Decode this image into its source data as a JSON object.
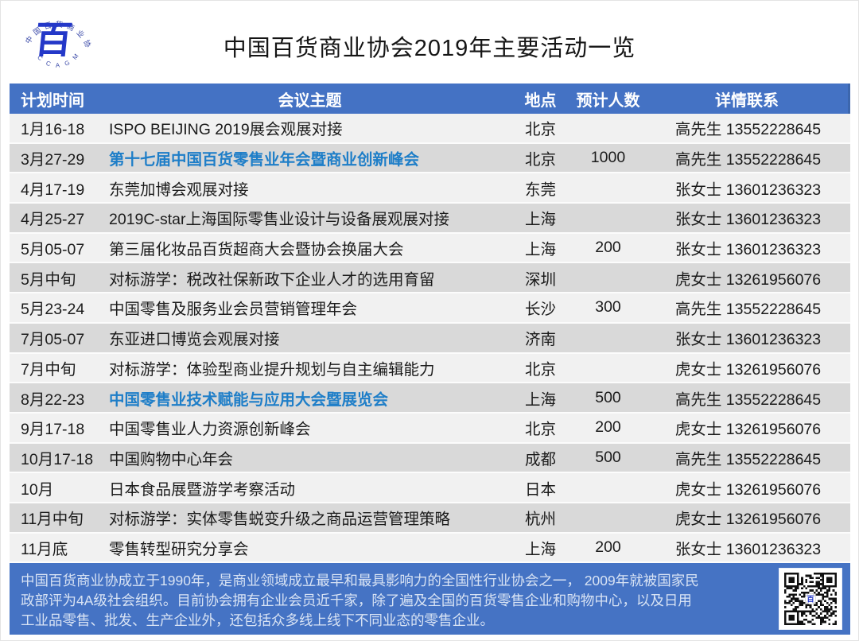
{
  "page": {
    "title": "中国百货商业协会2019年主要活动一览",
    "logo": {
      "ring_top_text": "中国百货商业协会",
      "ring_bottom_text": "C C A G M",
      "center_glyph": "百"
    }
  },
  "table": {
    "headers": [
      "计划时间",
      "会议主题",
      "地点",
      "预计人数",
      "详情联系"
    ],
    "rows": [
      {
        "time": "1月16-18",
        "topic": "ISPO BEIJING 2019展会观展对接",
        "location": "北京",
        "attendees": "",
        "contact_name": "高先生",
        "contact_phone": "13552228645",
        "highlight": false
      },
      {
        "time": "3月27-29",
        "topic": "第十七届中国百货零售业年会暨商业创新峰会",
        "location": "北京",
        "attendees": "1000",
        "contact_name": "高先生",
        "contact_phone": "13552228645",
        "highlight": true
      },
      {
        "time": "4月17-19",
        "topic": "东莞加博会观展对接",
        "location": "东莞",
        "attendees": "",
        "contact_name": "张女士",
        "contact_phone": "13601236323",
        "highlight": false
      },
      {
        "time": "4月25-27",
        "topic": "2019C-star上海国际零售业设计与设备展观展对接",
        "location": "上海",
        "attendees": "",
        "contact_name": "张女士",
        "contact_phone": "13601236323",
        "highlight": false
      },
      {
        "time": "5月05-07",
        "topic": "第三届化妆品百货超商大会暨协会换届大会",
        "location": "上海",
        "attendees": "200",
        "contact_name": "张女士",
        "contact_phone": "13601236323",
        "highlight": false
      },
      {
        "time": "5月中旬",
        "topic": "对标游学：税改社保新政下企业人才的选用育留",
        "location": "深圳",
        "attendees": "",
        "contact_name": "虎女士",
        "contact_phone": "13261956076",
        "highlight": false
      },
      {
        "time": "5月23-24",
        "topic": "中国零售及服务业会员营销管理年会",
        "location": "长沙",
        "attendees": "300",
        "contact_name": "高先生",
        "contact_phone": "13552228645",
        "highlight": false
      },
      {
        "time": "7月05-07",
        "topic": "东亚进口博览会观展对接",
        "location": "济南",
        "attendees": "",
        "contact_name": "张女士",
        "contact_phone": "13601236323",
        "highlight": false
      },
      {
        "time": "7月中旬",
        "topic": "对标游学：体验型商业提升规划与自主编辑能力",
        "location": "北京",
        "attendees": "",
        "contact_name": "虎女士",
        "contact_phone": "13261956076",
        "highlight": false
      },
      {
        "time": "8月22-23",
        "topic": "中国零售业技术赋能与应用大会暨展览会",
        "location": "上海",
        "attendees": "500",
        "contact_name": "高先生",
        "contact_phone": "13552228645",
        "highlight": true
      },
      {
        "time": "9月17-18",
        "topic": "中国零售业人力资源创新峰会",
        "location": "北京",
        "attendees": "200",
        "contact_name": "虎女士",
        "contact_phone": "13261956076",
        "highlight": false
      },
      {
        "time": "10月17-18",
        "topic": "中国购物中心年会",
        "location": "成都",
        "attendees": "500",
        "contact_name": "高先生",
        "contact_phone": "13552228645",
        "highlight": false
      },
      {
        "time": "10月",
        "topic": "日本食品展暨游学考察活动",
        "location": "日本",
        "attendees": "",
        "contact_name": "虎女士",
        "contact_phone": "13261956076",
        "highlight": false
      },
      {
        "time": "11月中旬",
        "topic": "对标游学：实体零售蜕变升级之商品运营管理策略",
        "location": "杭州",
        "attendees": "",
        "contact_name": "虎女士",
        "contact_phone": "13261956076",
        "highlight": false
      },
      {
        "time": "11月底",
        "topic": "零售转型研究分享会",
        "location": "上海",
        "attendees": "200",
        "contact_name": "张女士",
        "contact_phone": "13601236323",
        "highlight": false
      }
    ]
  },
  "footer": {
    "lines": [
      "中国百货商业协成立于1990年，是商业领域成立最早和最具影响力的全国性行业协会之一， 2009年就被国家民",
      "政部评为4A级社会组织。目前协会拥有企业会员近千家，除了遍及全国的百货零售企业和购物中心，以及日用",
      "工业品零售、批发、生产企业外，还包括众多线上线下不同业态的零售企业。"
    ],
    "qr_center_glyph": "百"
  },
  "colors": {
    "header_blue": "#4472C4",
    "band_light": "#F1F1F1",
    "band_dark": "#D9D9D9",
    "highlight_text": "#1E7EC8",
    "footer_blue": "#4573C4",
    "footer_text": "#D8E3F4",
    "logo_blue": "#2438C8",
    "ring_navy": "#3A49A8"
  }
}
